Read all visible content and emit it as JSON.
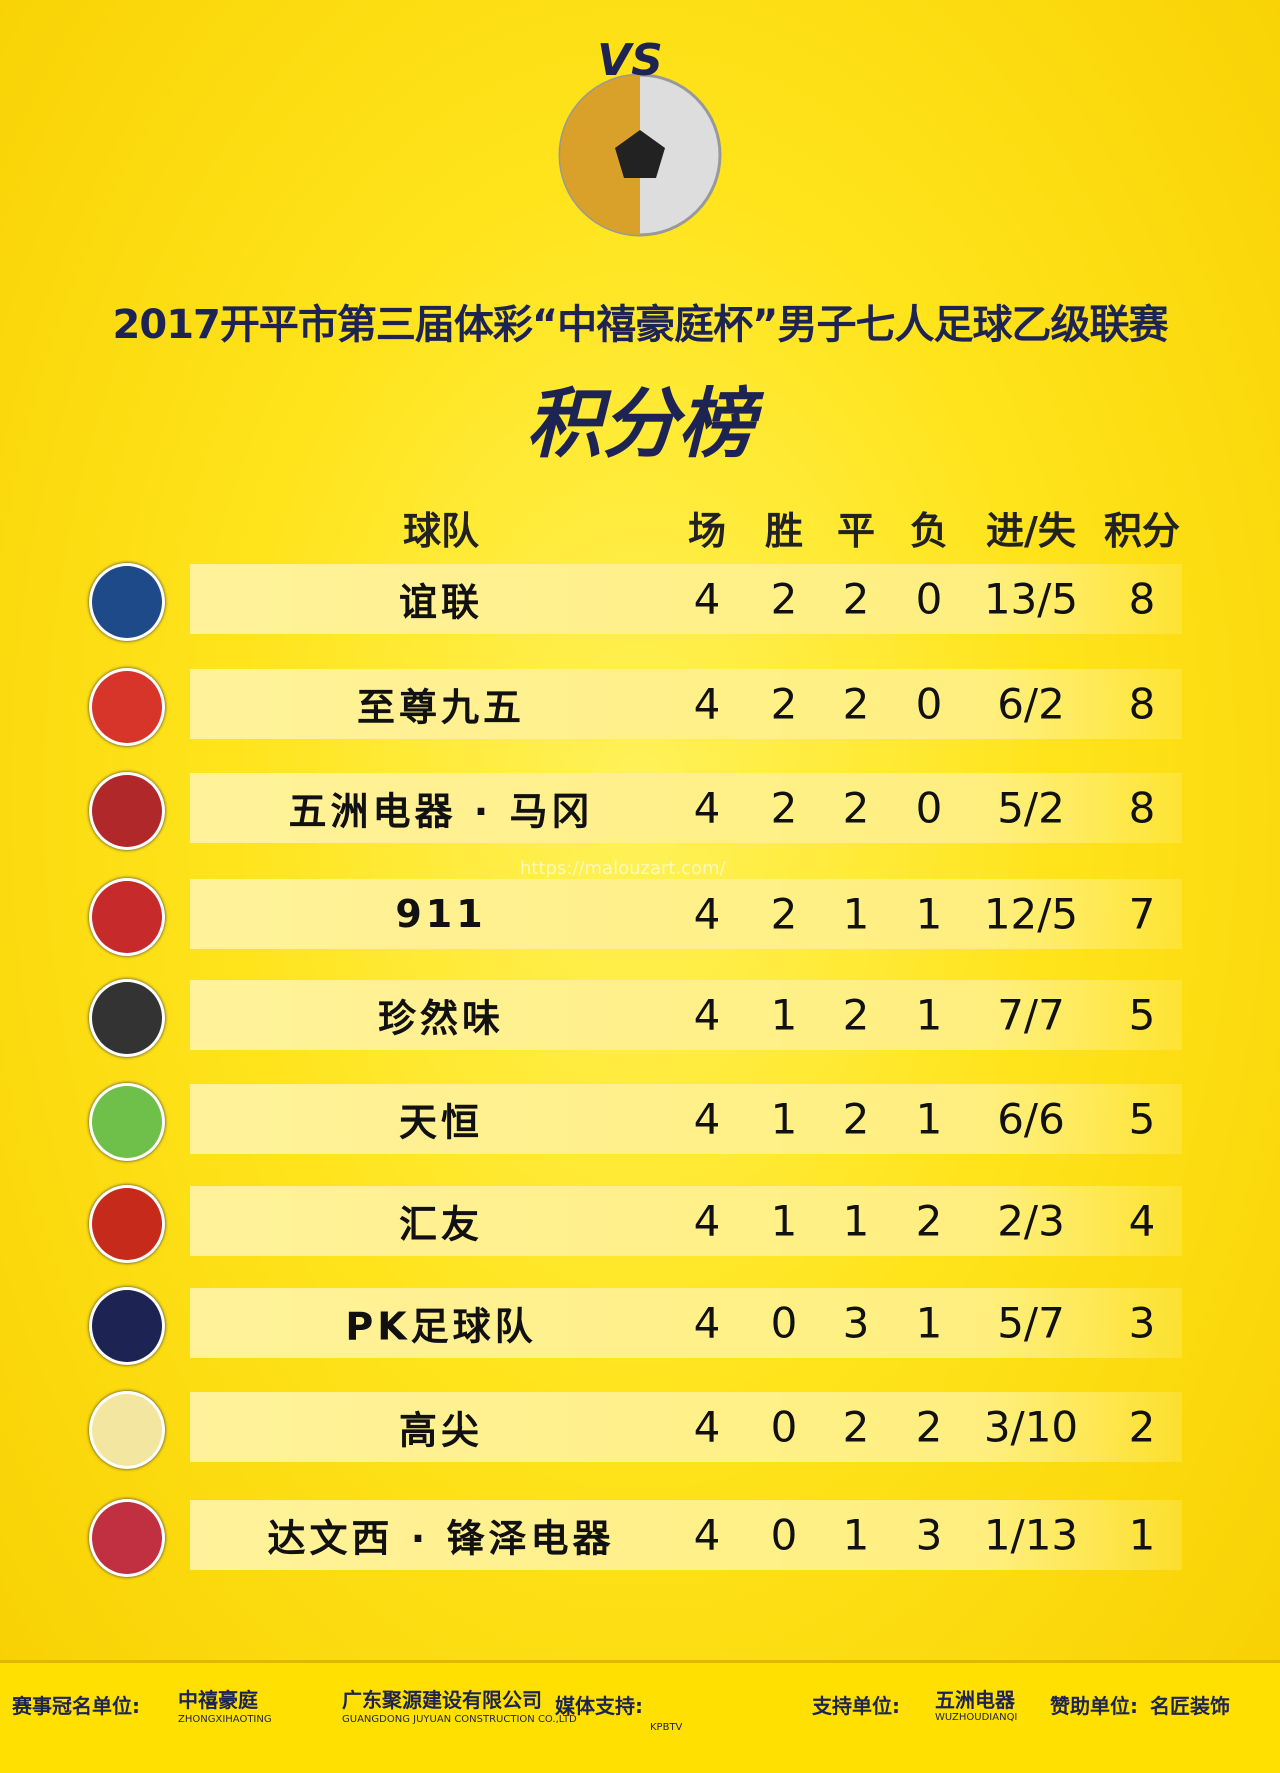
{
  "header": {
    "badge": "VS",
    "title": "2017开平市第三届体彩“中禧豪庭杯”男子七人足球乙级联赛",
    "subtitle": "积分榜"
  },
  "watermark": "https://malouzart.com/",
  "table": {
    "columns": [
      "球队",
      "场",
      "胜",
      "平",
      "负",
      "进/失",
      "积分"
    ],
    "rows": [
      [
        "谊联",
        4,
        2,
        2,
        0,
        "13/5",
        8
      ],
      [
        "至尊九五",
        4,
        2,
        2,
        0,
        "6/2",
        8
      ],
      [
        "五洲电器 · 马冈",
        4,
        2,
        2,
        0,
        "5/2",
        8
      ],
      [
        "911",
        4,
        2,
        1,
        1,
        "12/5",
        7
      ],
      [
        "珍然味",
        4,
        1,
        2,
        1,
        "7/7",
        5
      ],
      [
        "天恒",
        4,
        1,
        2,
        1,
        "6/6",
        5
      ],
      [
        "汇友",
        4,
        1,
        1,
        2,
        "2/3",
        4
      ],
      [
        "PK足球队",
        4,
        0,
        3,
        1,
        "5/7",
        3
      ],
      [
        "高尖",
        4,
        0,
        2,
        2,
        "3/10",
        2
      ],
      [
        "达文西 · 锋泽电器",
        4,
        0,
        1,
        3,
        "1/13",
        1
      ]
    ]
  },
  "footer": {
    "items": [
      "赛事冠名单位:",
      "中禧豪庭",
      "ZHONGXIHAOTING",
      "广东聚源建设有限公司",
      "GUANGDONG JUYUAN CONSTRUCTION CO.,LTD",
      "媒体支持:",
      "KPBTV",
      "支持单位:",
      "五洲电器",
      "WUZHOUDIANQI",
      "赞助单位:",
      "名匠装饰"
    ]
  }
}
